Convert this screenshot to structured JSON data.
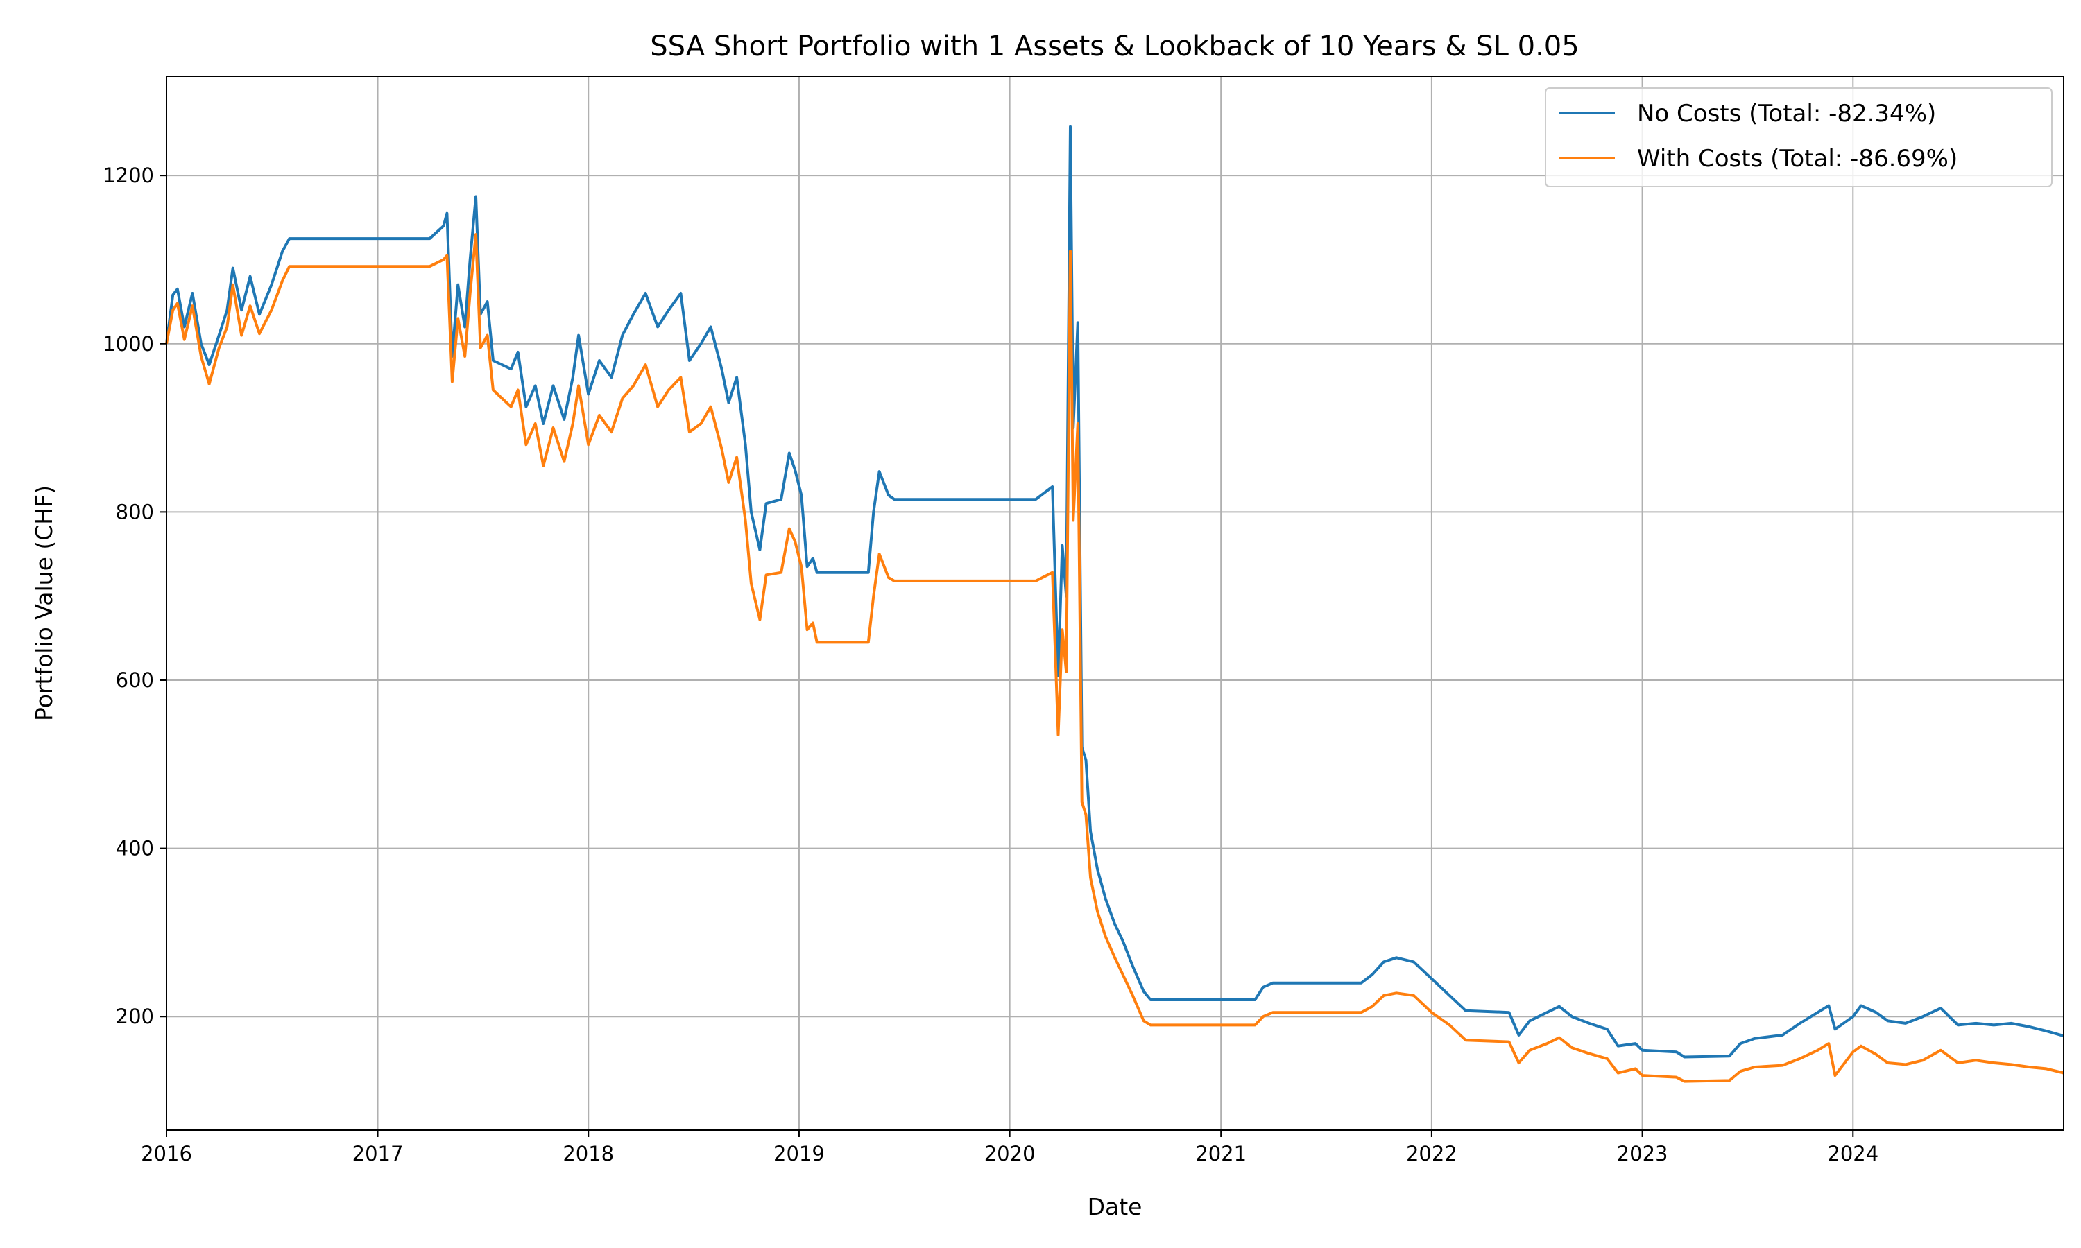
{
  "chart_data": {
    "type": "line",
    "title": "SSA Short Portfolio with 1 Assets & Lookback of 10 Years & SL 0.05",
    "xlabel": "Date",
    "ylabel": "Portfolio Value (CHF)",
    "xlim": [
      "2016-01-01",
      "2024-12-31"
    ],
    "ylim": [
      65,
      1318
    ],
    "x_ticks": [
      "2016",
      "2017",
      "2018",
      "2019",
      "2020",
      "2021",
      "2022",
      "2023",
      "2024"
    ],
    "y_ticks": [
      200,
      400,
      600,
      800,
      1000,
      1200
    ],
    "grid": true,
    "legend_position": "top-right",
    "series": [
      {
        "name": "No Costs (Total: -82.34%)",
        "color": "#1f77b4",
        "points": [
          [
            "2016-01-01",
            1000
          ],
          [
            "2016-01-12",
            1058
          ],
          [
            "2016-01-20",
            1065
          ],
          [
            "2016-02-01",
            1020
          ],
          [
            "2016-02-15",
            1060
          ],
          [
            "2016-03-01",
            1000
          ],
          [
            "2016-03-15",
            975
          ],
          [
            "2016-04-01",
            1010
          ],
          [
            "2016-04-15",
            1040
          ],
          [
            "2016-04-25",
            1090
          ],
          [
            "2016-05-10",
            1040
          ],
          [
            "2016-05-25",
            1080
          ],
          [
            "2016-06-10",
            1035
          ],
          [
            "2016-07-01",
            1070
          ],
          [
            "2016-07-20",
            1110
          ],
          [
            "2016-08-01",
            1125
          ],
          [
            "2017-04-01",
            1125
          ],
          [
            "2017-04-25",
            1140
          ],
          [
            "2017-05-01",
            1155
          ],
          [
            "2017-05-10",
            985
          ],
          [
            "2017-05-20",
            1070
          ],
          [
            "2017-06-01",
            1020
          ],
          [
            "2017-06-10",
            1100
          ],
          [
            "2017-06-20",
            1175
          ],
          [
            "2017-06-28",
            1035
          ],
          [
            "2017-07-10",
            1050
          ],
          [
            "2017-07-20",
            980
          ],
          [
            "2017-08-20",
            970
          ],
          [
            "2017-09-01",
            990
          ],
          [
            "2017-09-15",
            925
          ],
          [
            "2017-10-01",
            950
          ],
          [
            "2017-10-15",
            905
          ],
          [
            "2017-11-01",
            950
          ],
          [
            "2017-11-20",
            910
          ],
          [
            "2017-12-05",
            960
          ],
          [
            "2017-12-15",
            1010
          ],
          [
            "2018-01-01",
            940
          ],
          [
            "2018-01-20",
            980
          ],
          [
            "2018-02-10",
            960
          ],
          [
            "2018-03-01",
            1010
          ],
          [
            "2018-03-20",
            1035
          ],
          [
            "2018-04-10",
            1060
          ],
          [
            "2018-05-01",
            1020
          ],
          [
            "2018-05-20",
            1040
          ],
          [
            "2018-06-10",
            1060
          ],
          [
            "2018-06-25",
            980
          ],
          [
            "2018-07-15",
            1000
          ],
          [
            "2018-08-01",
            1020
          ],
          [
            "2018-08-20",
            970
          ],
          [
            "2018-09-01",
            930
          ],
          [
            "2018-09-15",
            960
          ],
          [
            "2018-09-30",
            880
          ],
          [
            "2018-10-10",
            800
          ],
          [
            "2018-10-25",
            755
          ],
          [
            "2018-11-05",
            810
          ],
          [
            "2018-12-01",
            815
          ],
          [
            "2018-12-15",
            870
          ],
          [
            "2018-12-25",
            850
          ],
          [
            "2019-01-05",
            820
          ],
          [
            "2019-01-15",
            735
          ],
          [
            "2019-01-25",
            745
          ],
          [
            "2019-02-01",
            728
          ],
          [
            "2019-05-01",
            728
          ],
          [
            "2019-05-10",
            800
          ],
          [
            "2019-05-20",
            848
          ],
          [
            "2019-06-05",
            820
          ],
          [
            "2019-06-15",
            815
          ],
          [
            "2020-02-15",
            815
          ],
          [
            "2020-03-15",
            830
          ],
          [
            "2020-03-25",
            605
          ],
          [
            "2020-04-01",
            760
          ],
          [
            "2020-04-08",
            700
          ],
          [
            "2020-04-15",
            1258
          ],
          [
            "2020-04-20",
            900
          ],
          [
            "2020-04-28",
            1025
          ],
          [
            "2020-05-05",
            520
          ],
          [
            "2020-05-12",
            505
          ],
          [
            "2020-05-20",
            420
          ],
          [
            "2020-06-01",
            375
          ],
          [
            "2020-06-15",
            340
          ],
          [
            "2020-07-01",
            310
          ],
          [
            "2020-07-15",
            290
          ],
          [
            "2020-08-01",
            260
          ],
          [
            "2020-08-20",
            230
          ],
          [
            "2020-09-01",
            220
          ],
          [
            "2021-03-01",
            220
          ],
          [
            "2021-03-15",
            235
          ],
          [
            "2021-04-01",
            240
          ],
          [
            "2021-09-01",
            240
          ],
          [
            "2021-09-20",
            250
          ],
          [
            "2021-10-10",
            265
          ],
          [
            "2021-11-01",
            270
          ],
          [
            "2021-12-01",
            265
          ],
          [
            "2022-01-01",
            245
          ],
          [
            "2022-02-01",
            225
          ],
          [
            "2022-03-01",
            207
          ],
          [
            "2022-05-15",
            205
          ],
          [
            "2022-06-01",
            178
          ],
          [
            "2022-06-20",
            195
          ],
          [
            "2022-07-20",
            205
          ],
          [
            "2022-08-10",
            212
          ],
          [
            "2022-09-01",
            200
          ],
          [
            "2022-10-01",
            192
          ],
          [
            "2022-11-01",
            185
          ],
          [
            "2022-11-20",
            165
          ],
          [
            "2022-12-20",
            168
          ],
          [
            "2023-01-01",
            160
          ],
          [
            "2023-03-01",
            158
          ],
          [
            "2023-03-15",
            152
          ],
          [
            "2023-06-01",
            153
          ],
          [
            "2023-06-20",
            168
          ],
          [
            "2023-07-15",
            174
          ],
          [
            "2023-09-01",
            178
          ],
          [
            "2023-10-01",
            192
          ],
          [
            "2023-11-01",
            205
          ],
          [
            "2023-11-20",
            213
          ],
          [
            "2023-12-01",
            185
          ],
          [
            "2024-01-01",
            200
          ],
          [
            "2024-01-15",
            213
          ],
          [
            "2024-02-10",
            205
          ],
          [
            "2024-03-01",
            195
          ],
          [
            "2024-04-01",
            192
          ],
          [
            "2024-05-01",
            200
          ],
          [
            "2024-06-01",
            210
          ],
          [
            "2024-07-01",
            190
          ],
          [
            "2024-08-01",
            192
          ],
          [
            "2024-09-01",
            190
          ],
          [
            "2024-10-01",
            192
          ],
          [
            "2024-11-01",
            188
          ],
          [
            "2024-12-01",
            183
          ],
          [
            "2024-12-31",
            177
          ]
        ]
      },
      {
        "name": "With Costs (Total: -86.69%)",
        "color": "#ff7f0e",
        "points": [
          [
            "2016-01-01",
            1000
          ],
          [
            "2016-01-12",
            1040
          ],
          [
            "2016-01-20",
            1048
          ],
          [
            "2016-02-01",
            1005
          ],
          [
            "2016-02-15",
            1045
          ],
          [
            "2016-03-01",
            985
          ],
          [
            "2016-03-15",
            952
          ],
          [
            "2016-04-01",
            995
          ],
          [
            "2016-04-15",
            1020
          ],
          [
            "2016-04-25",
            1070
          ],
          [
            "2016-05-10",
            1010
          ],
          [
            "2016-05-25",
            1045
          ],
          [
            "2016-06-10",
            1012
          ],
          [
            "2016-07-01",
            1040
          ],
          [
            "2016-07-20",
            1075
          ],
          [
            "2016-08-01",
            1092
          ],
          [
            "2017-04-01",
            1092
          ],
          [
            "2017-04-25",
            1100
          ],
          [
            "2017-05-01",
            1105
          ],
          [
            "2017-05-10",
            955
          ],
          [
            "2017-05-20",
            1030
          ],
          [
            "2017-06-01",
            985
          ],
          [
            "2017-06-10",
            1060
          ],
          [
            "2017-06-20",
            1130
          ],
          [
            "2017-06-28",
            995
          ],
          [
            "2017-07-10",
            1010
          ],
          [
            "2017-07-20",
            945
          ],
          [
            "2017-08-20",
            925
          ],
          [
            "2017-09-01",
            945
          ],
          [
            "2017-09-15",
            880
          ],
          [
            "2017-10-01",
            905
          ],
          [
            "2017-10-15",
            855
          ],
          [
            "2017-11-01",
            900
          ],
          [
            "2017-11-20",
            860
          ],
          [
            "2017-12-05",
            905
          ],
          [
            "2017-12-15",
            950
          ],
          [
            "2018-01-01",
            880
          ],
          [
            "2018-01-20",
            915
          ],
          [
            "2018-02-10",
            895
          ],
          [
            "2018-03-01",
            935
          ],
          [
            "2018-03-20",
            950
          ],
          [
            "2018-04-10",
            975
          ],
          [
            "2018-05-01",
            925
          ],
          [
            "2018-05-20",
            945
          ],
          [
            "2018-06-10",
            960
          ],
          [
            "2018-06-25",
            895
          ],
          [
            "2018-07-15",
            905
          ],
          [
            "2018-08-01",
            925
          ],
          [
            "2018-08-20",
            875
          ],
          [
            "2018-09-01",
            835
          ],
          [
            "2018-09-15",
            865
          ],
          [
            "2018-09-30",
            790
          ],
          [
            "2018-10-10",
            715
          ],
          [
            "2018-10-25",
            672
          ],
          [
            "2018-11-05",
            725
          ],
          [
            "2018-12-01",
            728
          ],
          [
            "2018-12-15",
            780
          ],
          [
            "2018-12-25",
            765
          ],
          [
            "2019-01-05",
            735
          ],
          [
            "2019-01-15",
            660
          ],
          [
            "2019-01-25",
            668
          ],
          [
            "2019-02-01",
            645
          ],
          [
            "2019-05-01",
            645
          ],
          [
            "2019-05-10",
            700
          ],
          [
            "2019-05-20",
            750
          ],
          [
            "2019-06-05",
            722
          ],
          [
            "2019-06-15",
            718
          ],
          [
            "2020-02-15",
            718
          ],
          [
            "2020-03-15",
            728
          ],
          [
            "2020-03-25",
            535
          ],
          [
            "2020-04-01",
            660
          ],
          [
            "2020-04-08",
            610
          ],
          [
            "2020-04-15",
            1110
          ],
          [
            "2020-04-20",
            790
          ],
          [
            "2020-04-28",
            905
          ],
          [
            "2020-05-05",
            455
          ],
          [
            "2020-05-12",
            440
          ],
          [
            "2020-05-20",
            365
          ],
          [
            "2020-06-01",
            325
          ],
          [
            "2020-06-15",
            295
          ],
          [
            "2020-07-01",
            270
          ],
          [
            "2020-07-15",
            250
          ],
          [
            "2020-08-01",
            225
          ],
          [
            "2020-08-20",
            195
          ],
          [
            "2020-09-01",
            190
          ],
          [
            "2021-03-01",
            190
          ],
          [
            "2021-03-15",
            200
          ],
          [
            "2021-04-01",
            205
          ],
          [
            "2021-09-01",
            205
          ],
          [
            "2021-09-20",
            212
          ],
          [
            "2021-10-10",
            225
          ],
          [
            "2021-11-01",
            228
          ],
          [
            "2021-12-01",
            225
          ],
          [
            "2022-01-01",
            205
          ],
          [
            "2022-02-01",
            190
          ],
          [
            "2022-03-01",
            172
          ],
          [
            "2022-05-15",
            170
          ],
          [
            "2022-06-01",
            145
          ],
          [
            "2022-06-20",
            160
          ],
          [
            "2022-07-20",
            168
          ],
          [
            "2022-08-10",
            175
          ],
          [
            "2022-09-01",
            163
          ],
          [
            "2022-10-01",
            156
          ],
          [
            "2022-11-01",
            150
          ],
          [
            "2022-11-20",
            133
          ],
          [
            "2022-12-20",
            138
          ],
          [
            "2023-01-01",
            130
          ],
          [
            "2023-03-01",
            128
          ],
          [
            "2023-03-15",
            123
          ],
          [
            "2023-06-01",
            124
          ],
          [
            "2023-06-20",
            135
          ],
          [
            "2023-07-15",
            140
          ],
          [
            "2023-09-01",
            142
          ],
          [
            "2023-10-01",
            150
          ],
          [
            "2023-11-01",
            160
          ],
          [
            "2023-11-20",
            168
          ],
          [
            "2023-12-01",
            130
          ],
          [
            "2024-01-01",
            158
          ],
          [
            "2024-01-15",
            165
          ],
          [
            "2024-02-10",
            155
          ],
          [
            "2024-03-01",
            145
          ],
          [
            "2024-04-01",
            143
          ],
          [
            "2024-05-01",
            148
          ],
          [
            "2024-06-01",
            160
          ],
          [
            "2024-07-01",
            145
          ],
          [
            "2024-08-01",
            148
          ],
          [
            "2024-09-01",
            145
          ],
          [
            "2024-10-01",
            143
          ],
          [
            "2024-11-01",
            140
          ],
          [
            "2024-12-01",
            138
          ],
          [
            "2024-12-31",
            133
          ]
        ]
      }
    ]
  }
}
